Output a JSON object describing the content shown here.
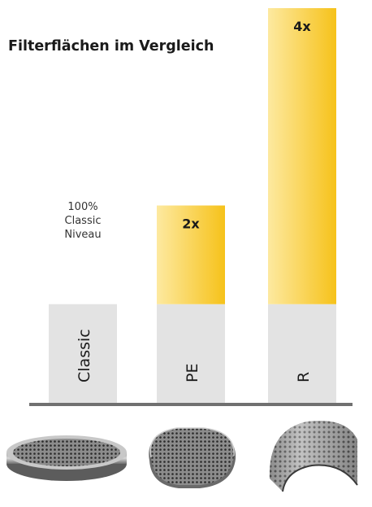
{
  "chart_data": {
    "type": "bar",
    "title": "Filterflächen im Vergleich",
    "categories": [
      "Classic",
      "PE",
      "R"
    ],
    "base_level": 1,
    "values": [
      1,
      2,
      4
    ],
    "multiplier_labels": [
      "",
      "2x",
      "4x"
    ],
    "base_annotation": [
      "100%",
      "Classic",
      "Niveau"
    ],
    "xlabel": "",
    "ylabel": "",
    "ylim": [
      0,
      4
    ],
    "grid": false,
    "legend": "none",
    "colors": {
      "base": "#e3e3e3",
      "extra_top": "#f6c21a",
      "extra_bottom": "#fde9a0",
      "baseline": "#707070"
    }
  },
  "product_images": [
    {
      "icon": "round-perforated-filter-disc-icon"
    },
    {
      "icon": "oval-perforated-filter-plate-icon"
    },
    {
      "icon": "curved-perforated-filter-shell-icon"
    }
  ]
}
